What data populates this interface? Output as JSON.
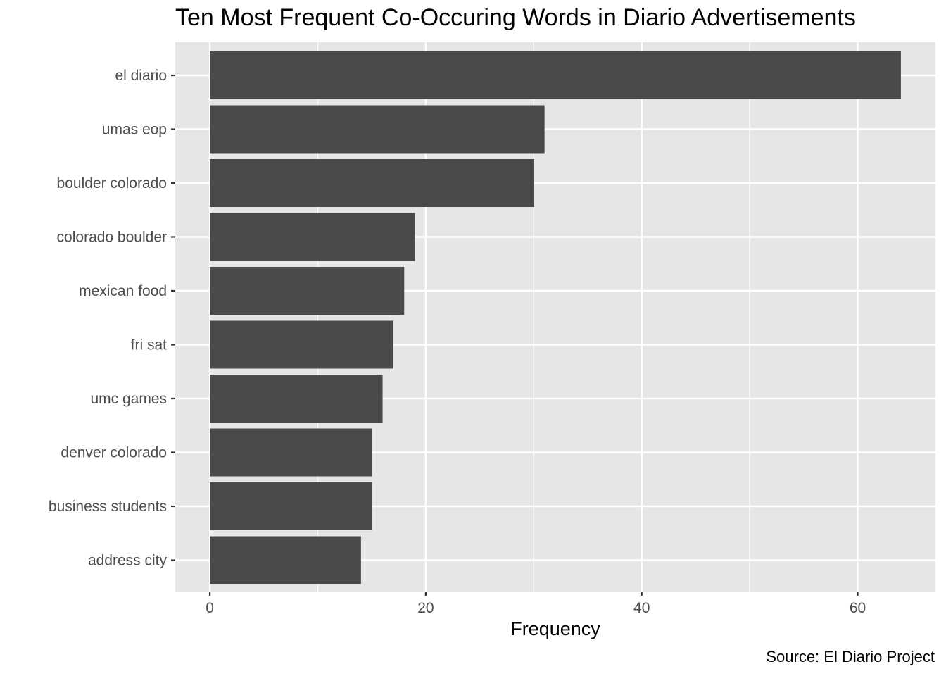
{
  "chart_data": {
    "type": "bar",
    "orientation": "horizontal",
    "title": "Ten Most Frequent Co-Occuring Words in Diario Advertisements",
    "xlabel": "Frequency",
    "ylabel": "",
    "caption": "Source: El Diario Project",
    "categories": [
      "el diario",
      "umas eop",
      "boulder colorado",
      "colorado boulder",
      "mexican food",
      "fri sat",
      "umc games",
      "denver colorado",
      "business students",
      "address city"
    ],
    "values": [
      64,
      31,
      30,
      19,
      18,
      17,
      16,
      15,
      15,
      14
    ],
    "xlim": [
      -3.2,
      67.2
    ],
    "x_ticks": [
      0,
      20,
      40,
      60
    ],
    "x_minor_ticks": [
      10,
      30,
      50
    ],
    "grid": true,
    "legend": "none",
    "colors": {
      "bar": "#4a4a4a",
      "panel": "#e6e6e6",
      "grid": "#ffffff"
    }
  }
}
